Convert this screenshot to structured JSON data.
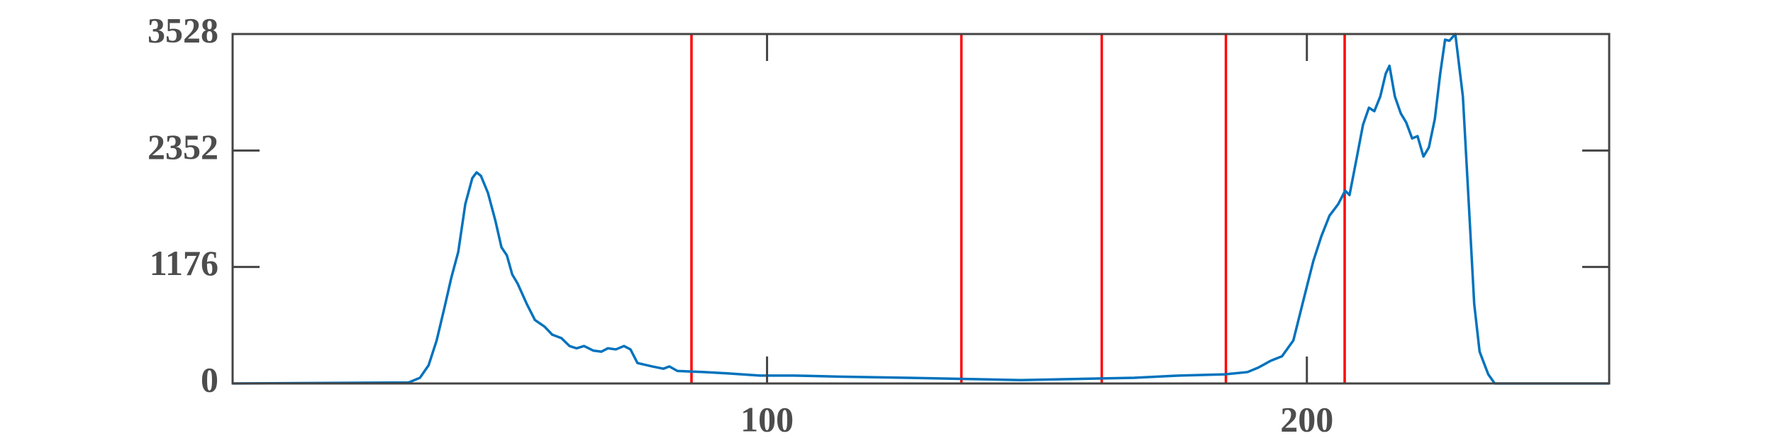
{
  "chart_data": {
    "type": "line",
    "x": [
      1,
      33.6,
      35.7,
      37.3,
      38.8,
      40.3,
      41.5,
      42.8,
      44.1,
      45.4,
      46.2,
      47,
      48.3,
      49.7,
      50.8,
      51.8,
      52.8,
      53.8,
      55.5,
      57,
      58.8,
      60.2,
      61.9,
      63.4,
      64.7,
      66.1,
      67.8,
      69.3,
      70.5,
      72,
      73.5,
      74.7,
      76,
      78.7,
      80.8,
      81.9,
      83.4,
      88.2,
      92.4,
      98.7,
      105,
      113.4,
      126,
      136.6,
      147,
      157.5,
      168,
      176.4,
      184.8,
      189,
      191,
      193.3,
      195.4,
      197.5,
      199.5,
      201.2,
      202.7,
      204.2,
      205.8,
      207.1,
      207.9,
      209.2,
      210.4,
      211.5,
      212.5,
      213.6,
      214.6,
      215.3,
      216.3,
      217.4,
      218.4,
      219.5,
      220.5,
      221.6,
      222.6,
      223.7,
      224.7,
      225.6,
      226.4,
      227.5,
      228.9,
      230,
      231,
      232,
      233.6,
      234.8,
      256
    ],
    "series": [
      {
        "color": "#0072bd",
        "values": [
          0,
          10,
          57,
          183,
          435,
          779,
          1065,
          1329,
          1810,
          2073,
          2131,
          2096,
          1924,
          1638,
          1375,
          1294,
          1100,
          1008,
          802,
          641,
          573,
          493,
          458,
          378,
          355,
          378,
          332,
          321,
          355,
          344,
          378,
          344,
          206,
          172,
          149,
          172,
          126,
          115,
          103,
          80,
          80,
          69,
          57,
          46,
          34,
          46,
          57,
          80,
          92,
          115,
          160,
          229,
          275,
          435,
          871,
          1237,
          1489,
          1695,
          1810,
          1947,
          1902,
          2268,
          2612,
          2784,
          2749,
          2898,
          3127,
          3207,
          2898,
          2726,
          2635,
          2474,
          2497,
          2291,
          2383,
          2669,
          3127,
          3471,
          3460,
          3528,
          2898,
          1810,
          802,
          321,
          92,
          0,
          0
        ]
      }
    ],
    "vlines": {
      "color": "#ff0000",
      "values": [
        86,
        136,
        162,
        185,
        207
      ]
    },
    "xlim": [
      1,
      256
    ],
    "xticks": [
      100,
      200
    ],
    "ylim": [
      0,
      3528
    ],
    "yticks": [
      0,
      1176,
      2352,
      3528
    ]
  }
}
